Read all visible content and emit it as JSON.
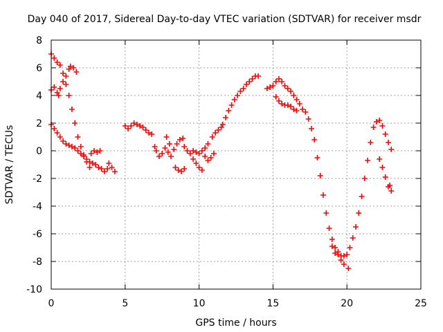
{
  "chart_data": {
    "type": "scatter",
    "title": "Day 040 of 2017, Sidereal Day-to-day VTEC variation (SDTVAR) for receiver msdr",
    "xlabel": "GPS time / hours",
    "ylabel": "SDTVAR / TECUs",
    "xlim": [
      0,
      25
    ],
    "ylim": [
      -10,
      8
    ],
    "xticks": [
      "0",
      "5",
      "10",
      "15",
      "20",
      "25"
    ],
    "yticks": [
      "8",
      "6",
      "4",
      "2",
      "0",
      "-2",
      "-4",
      "-6",
      "-8",
      "-10"
    ],
    "grid": true,
    "marker": "+",
    "color": "#ff0000",
    "series": [
      {
        "points": [
          [
            0.0,
            7.0
          ],
          [
            0.2,
            6.7
          ],
          [
            0.4,
            6.4
          ],
          [
            0.6,
            6.2
          ],
          [
            0.8,
            5.6
          ],
          [
            1.0,
            4.8
          ],
          [
            1.2,
            4.0
          ],
          [
            1.4,
            3.0
          ],
          [
            1.6,
            2.0
          ],
          [
            1.8,
            1.0
          ],
          [
            2.0,
            0.3
          ],
          [
            2.2,
            -0.3
          ],
          [
            2.4,
            -0.8
          ],
          [
            2.6,
            -1.2
          ],
          [
            0.0,
            4.4
          ],
          [
            0.2,
            4.6
          ],
          [
            0.4,
            4.2
          ],
          [
            0.5,
            4.0
          ],
          [
            0.6,
            4.5
          ],
          [
            0.8,
            5.0
          ],
          [
            1.0,
            5.4
          ],
          [
            1.2,
            5.9
          ],
          [
            1.3,
            6.1
          ],
          [
            1.5,
            6.0
          ],
          [
            1.7,
            5.7
          ],
          [
            0.0,
            1.9
          ],
          [
            0.2,
            1.6
          ],
          [
            0.4,
            1.3
          ],
          [
            0.6,
            1.0
          ],
          [
            0.8,
            0.7
          ],
          [
            1.0,
            0.5
          ],
          [
            1.2,
            0.4
          ],
          [
            1.4,
            0.3
          ],
          [
            1.6,
            0.2
          ],
          [
            1.8,
            0.0
          ],
          [
            2.0,
            -0.2
          ],
          [
            2.2,
            -0.4
          ],
          [
            2.4,
            -0.6
          ],
          [
            2.6,
            -0.8
          ],
          [
            2.8,
            -0.9
          ],
          [
            3.0,
            -1.0
          ],
          [
            3.2,
            -1.2
          ],
          [
            3.4,
            -1.3
          ],
          [
            3.6,
            -1.5
          ],
          [
            3.8,
            -1.3
          ],
          [
            2.7,
            -0.2
          ],
          [
            2.9,
            0.0
          ],
          [
            3.1,
            -0.1
          ],
          [
            3.3,
            0.0
          ],
          [
            3.9,
            -0.9
          ],
          [
            4.1,
            -1.2
          ],
          [
            4.3,
            -1.5
          ],
          [
            5.0,
            1.8
          ],
          [
            5.2,
            1.6
          ],
          [
            5.4,
            1.8
          ],
          [
            5.6,
            2.0
          ],
          [
            5.8,
            1.9
          ],
          [
            6.0,
            1.8
          ],
          [
            6.2,
            1.7
          ],
          [
            6.4,
            1.5
          ],
          [
            6.6,
            1.3
          ],
          [
            6.8,
            1.2
          ],
          [
            7.0,
            0.3
          ],
          [
            7.1,
            0.0
          ],
          [
            7.3,
            -0.4
          ],
          [
            7.5,
            -0.2
          ],
          [
            7.7,
            0.2
          ],
          [
            7.9,
            -0.1
          ],
          [
            8.1,
            -0.4
          ],
          [
            8.3,
            0.1
          ],
          [
            8.5,
            0.5
          ],
          [
            8.7,
            0.8
          ],
          [
            8.9,
            0.9
          ],
          [
            9.0,
            0.3
          ],
          [
            7.8,
            1.0
          ],
          [
            8.0,
            0.5
          ],
          [
            8.4,
            -1.2
          ],
          [
            8.6,
            -1.4
          ],
          [
            8.8,
            -1.5
          ],
          [
            9.0,
            -1.3
          ],
          [
            9.2,
            0.0
          ],
          [
            9.4,
            -0.2
          ],
          [
            9.6,
            0.0
          ],
          [
            9.8,
            -0.1
          ],
          [
            10.0,
            -0.2
          ],
          [
            10.2,
            0.0
          ],
          [
            10.4,
            0.2
          ],
          [
            10.6,
            0.5
          ],
          [
            9.6,
            -0.6
          ],
          [
            9.8,
            -0.9
          ],
          [
            10.0,
            -1.2
          ],
          [
            10.2,
            -1.4
          ],
          [
            10.4,
            -0.4
          ],
          [
            10.6,
            -0.7
          ],
          [
            10.8,
            -0.5
          ],
          [
            11.0,
            -0.2
          ],
          [
            10.9,
            1.0
          ],
          [
            11.1,
            1.3
          ],
          [
            11.3,
            1.5
          ],
          [
            11.5,
            1.7
          ],
          [
            11.6,
            1.9
          ],
          [
            11.8,
            2.4
          ],
          [
            12.0,
            2.9
          ],
          [
            12.2,
            3.3
          ],
          [
            12.4,
            3.7
          ],
          [
            12.6,
            4.0
          ],
          [
            12.8,
            4.3
          ],
          [
            13.0,
            4.5
          ],
          [
            13.2,
            4.8
          ],
          [
            13.4,
            5.0
          ],
          [
            13.6,
            5.2
          ],
          [
            13.8,
            5.4
          ],
          [
            14.0,
            5.4
          ],
          [
            14.6,
            4.5
          ],
          [
            14.8,
            4.6
          ],
          [
            15.0,
            4.7
          ],
          [
            15.2,
            5.0
          ],
          [
            15.4,
            5.2
          ],
          [
            15.6,
            5.0
          ],
          [
            15.8,
            4.7
          ],
          [
            16.0,
            4.5
          ],
          [
            16.2,
            4.3
          ],
          [
            16.4,
            4.0
          ],
          [
            16.6,
            3.7
          ],
          [
            16.8,
            3.4
          ],
          [
            17.0,
            3.0
          ],
          [
            15.2,
            3.9
          ],
          [
            15.4,
            3.6
          ],
          [
            15.6,
            3.4
          ],
          [
            15.8,
            3.3
          ],
          [
            16.0,
            3.3
          ],
          [
            16.2,
            3.2
          ],
          [
            16.4,
            3.0
          ],
          [
            16.6,
            2.9
          ],
          [
            17.2,
            2.8
          ],
          [
            17.4,
            2.3
          ],
          [
            17.6,
            1.6
          ],
          [
            17.8,
            0.8
          ],
          [
            18.0,
            -0.5
          ],
          [
            18.2,
            -1.8
          ],
          [
            18.4,
            -3.2
          ],
          [
            18.6,
            -4.5
          ],
          [
            18.8,
            -5.6
          ],
          [
            19.0,
            -6.4
          ],
          [
            19.2,
            -7.0
          ],
          [
            19.4,
            -7.5
          ],
          [
            19.6,
            -7.9
          ],
          [
            19.8,
            -8.2
          ],
          [
            19.0,
            -6.9
          ],
          [
            19.2,
            -7.4
          ],
          [
            19.4,
            -7.3
          ],
          [
            19.6,
            -7.6
          ],
          [
            19.8,
            -7.6
          ],
          [
            20.0,
            -7.5
          ],
          [
            20.1,
            -8.5
          ],
          [
            20.2,
            -7.0
          ],
          [
            20.4,
            -6.3
          ],
          [
            20.6,
            -5.5
          ],
          [
            20.8,
            -4.5
          ],
          [
            21.0,
            -3.3
          ],
          [
            21.2,
            -2.0
          ],
          [
            21.4,
            -0.7
          ],
          [
            21.6,
            0.6
          ],
          [
            21.8,
            1.7
          ],
          [
            22.0,
            2.1
          ],
          [
            22.2,
            2.2
          ],
          [
            22.4,
            1.8
          ],
          [
            22.6,
            1.2
          ],
          [
            22.8,
            0.6
          ],
          [
            23.0,
            0.1
          ],
          [
            22.2,
            -0.6
          ],
          [
            22.4,
            -1.2
          ],
          [
            22.6,
            -1.9
          ],
          [
            22.8,
            -2.6
          ],
          [
            23.0,
            -2.9
          ],
          [
            22.9,
            -2.5
          ]
        ]
      }
    ]
  }
}
